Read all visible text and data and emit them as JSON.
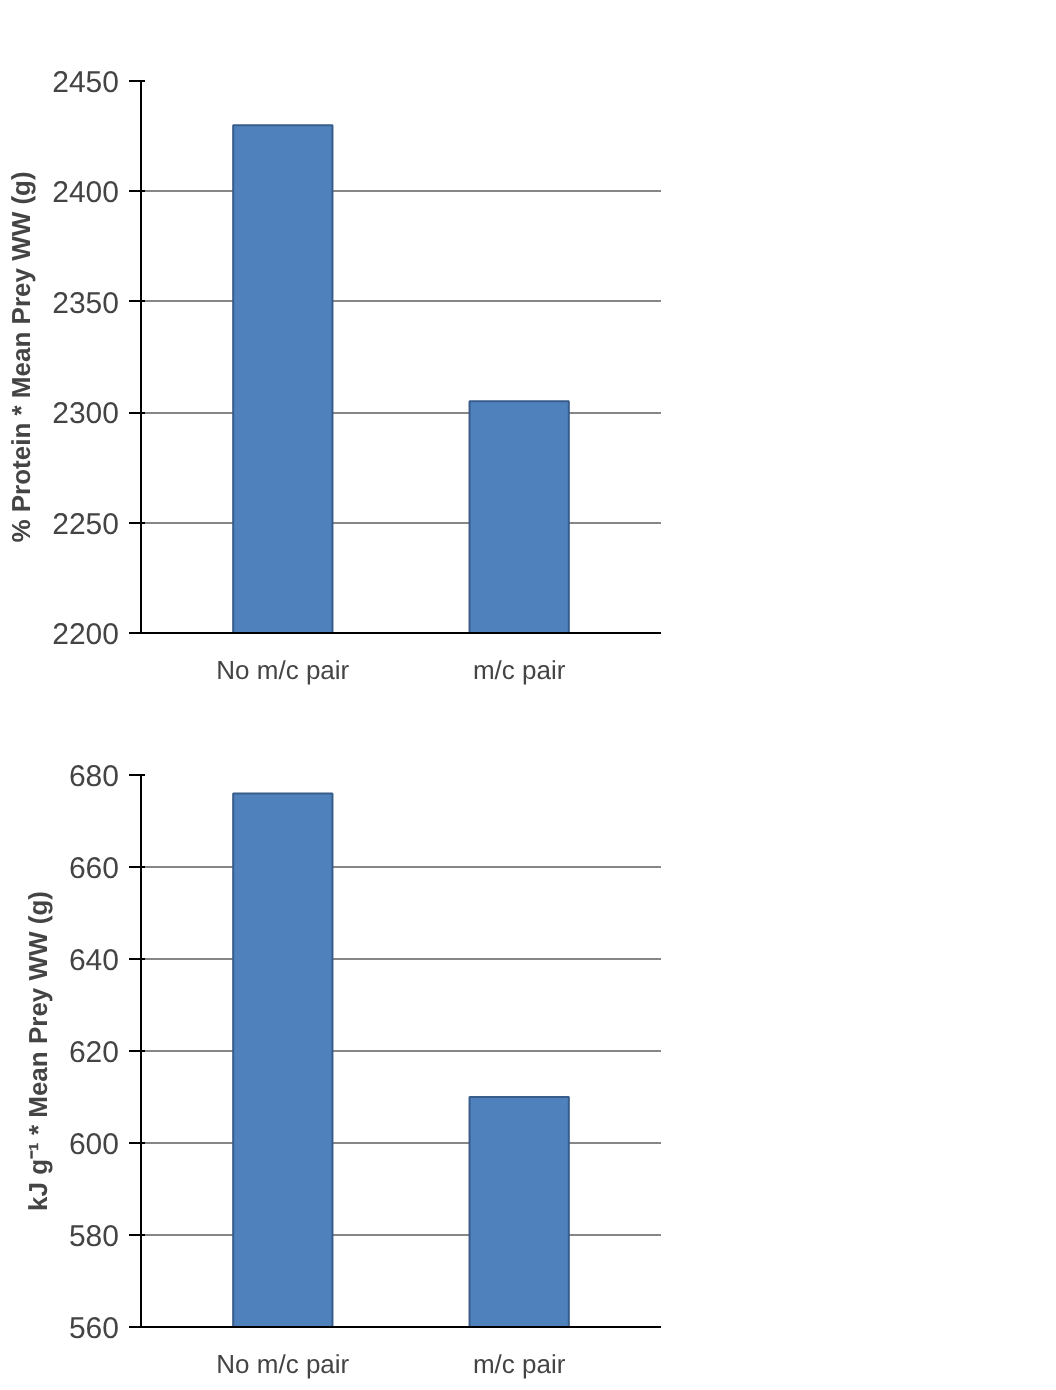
{
  "chart_data": [
    {
      "type": "bar",
      "categories": [
        "No m/c pair",
        "m/c pair"
      ],
      "values": [
        2430,
        2305
      ],
      "color": "#4f81bd",
      "ylabel": "% Protein * Mean Prey WW (g)",
      "ylim": [
        2200,
        2450
      ],
      "yticks": [
        2200,
        2250,
        2300,
        2350,
        2400,
        2450
      ],
      "grid": "y"
    },
    {
      "type": "bar",
      "categories": [
        "No m/c pair",
        "m/c pair"
      ],
      "values": [
        676,
        610
      ],
      "color": "#4f81bd",
      "ylabel": "kJ g⁻¹ * Mean Prey WW (g)",
      "ylim": [
        560,
        680
      ],
      "yticks": [
        560,
        580,
        600,
        620,
        640,
        660,
        680
      ],
      "grid": "y"
    }
  ]
}
